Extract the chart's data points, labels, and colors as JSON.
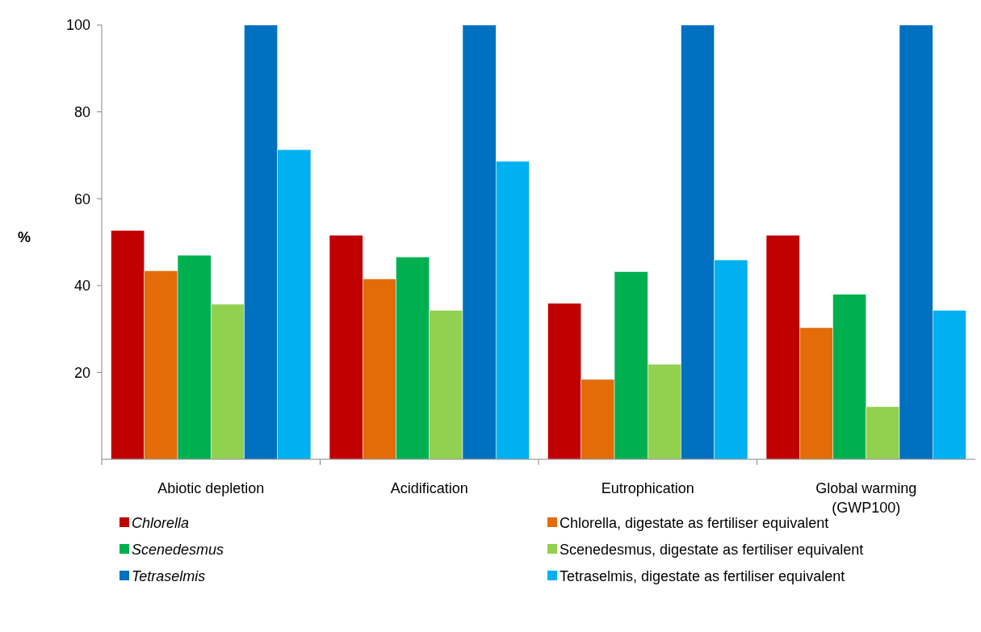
{
  "chart_data": {
    "type": "bar",
    "ylabel": "%",
    "categories": [
      "Abiotic depletion",
      "Acidification",
      "Eutrophication",
      "Global warming\n(GWP100)"
    ],
    "series": [
      {
        "name": "Chlorella",
        "color": "#c00000",
        "values": [
          52.7,
          51.6,
          35.9,
          51.6
        ]
      },
      {
        "name": "Chlorella, digestate as fertiliser equivalent",
        "color": "#e36c09",
        "values": [
          43.4,
          41.5,
          18.4,
          30.3
        ]
      },
      {
        "name": "Scenedesmus",
        "color": "#00b050",
        "values": [
          47.0,
          46.6,
          43.2,
          38.0
        ]
      },
      {
        "name": "Scenedesmus, digestate as fertiliser equivalent",
        "color": "#92d050",
        "values": [
          35.7,
          34.3,
          21.9,
          12.1
        ]
      },
      {
        "name": "Tetraselmis",
        "color": "#0070c0",
        "values": [
          100,
          100,
          100,
          100
        ]
      },
      {
        "name": "Tetraselmis, digestate as fertiliser equivalent",
        "color": "#00b0f0",
        "values": [
          71.3,
          68.6,
          45.9,
          34.3
        ]
      }
    ],
    "ylim": [
      0,
      100
    ],
    "yticks": [
      20,
      40,
      60,
      80,
      100
    ],
    "grid": false,
    "legend": "bottom"
  }
}
